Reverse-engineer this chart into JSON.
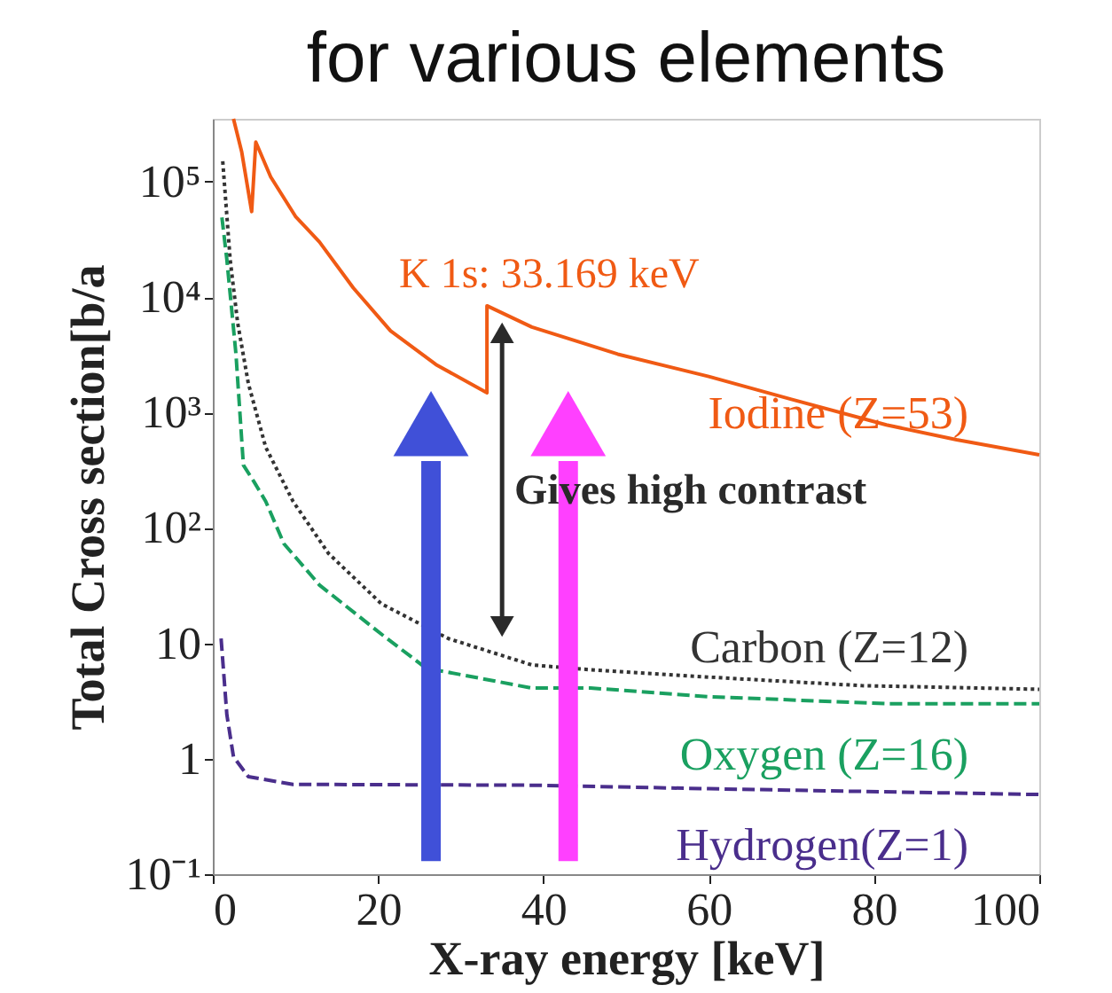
{
  "chart_data": {
    "type": "line",
    "title": "for various elements",
    "xlabel": "X-ray energy [keV]",
    "ylabel": "Total Cross section[b/a",
    "xlim": [
      0,
      100
    ],
    "xticks": [
      0,
      20,
      40,
      60,
      80,
      100
    ],
    "ylim": [
      0.1,
      350000
    ],
    "yticks": [
      {
        "value": 0.1,
        "label": "10⁻¹"
      },
      1,
      10,
      {
        "value": 100,
        "label": "10²"
      },
      {
        "value": 1000,
        "label": "10³"
      },
      {
        "value": 10000,
        "label": "10⁴"
      },
      {
        "value": 100000,
        "label": "10⁵"
      }
    ],
    "log": "y",
    "grid": false,
    "series": [
      {
        "name": "Iodine (Z=53)",
        "color": "#f05a14",
        "line_style": "solid",
        "x": [
          2.5,
          3.5,
          4.7,
          5.2,
          7,
          10,
          12.9,
          17,
          21.5,
          27,
          33.169,
          33.169,
          38.6,
          49,
          60,
          70,
          81.5,
          90,
          100
        ],
        "values": [
          350000,
          180000,
          55000,
          220000,
          110000,
          50000,
          30000,
          12000,
          5100,
          2600,
          1480,
          8400,
          5500,
          3200,
          2050,
          1300,
          780,
          580,
          430
        ]
      },
      {
        "name": "Carbon (Z=12)",
        "color": "#333333",
        "line_style": "dotted",
        "x": [
          1.2,
          2.1,
          3,
          4.3,
          6.4,
          9.7,
          14,
          20.4,
          28.5,
          38.6,
          45.7,
          60,
          78.5,
          100
        ],
        "values": [
          150000,
          21000,
          6000,
          1780,
          500,
          170,
          60,
          22,
          11,
          6.5,
          5.9,
          5.1,
          4.3,
          4
        ]
      },
      {
        "name": "Oxygen (Z=16)",
        "color": "#1aa060",
        "line_style": "dashed",
        "x": [
          1.1,
          1.7,
          2.8,
          3.7,
          5,
          6.4,
          8.6,
          12.9,
          20.4,
          25.8,
          38.6,
          45.7,
          60,
          81.5,
          100
        ],
        "values": [
          49000,
          21000,
          3200,
          350,
          250,
          170,
          73,
          32,
          12,
          6.1,
          4.1,
          4.1,
          3.45,
          3,
          3
        ]
      },
      {
        "name": "Hydrogen(Z=1)",
        "color": "#4a2e8c",
        "line_style": "dashed",
        "x": [
          1,
          1.7,
          2.5,
          4.3,
          9.7,
          38.6,
          60,
          100
        ],
        "values": [
          11,
          2.4,
          1.04,
          0.7,
          0.6,
          0.59,
          0.55,
          0.49
        ]
      }
    ],
    "annotations": [
      "K 1s: 33.169 keV",
      "Gives high contrast"
    ]
  }
}
